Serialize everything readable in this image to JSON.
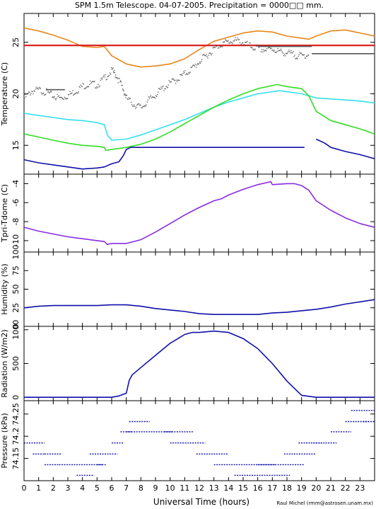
{
  "title": "SPM 1.5m Telescope. 04-07-2005. Precipitation = 0000□□ mm.",
  "xlabel": "Universal Time (hours)",
  "credit": "Raul Michel (rmm@astrosen.unam.mx)",
  "colors": {
    "orange": "#e8861a",
    "red": "#dd2222",
    "gray": "#555555",
    "cyan": "#33e0ee",
    "green": "#33dd22",
    "blue": "#1010aa",
    "purple": "#8a2be2"
  },
  "chart_data": [
    {
      "type": "line",
      "ylabel": "Temperature (C)",
      "xlim": [
        0,
        24
      ],
      "ylim": [
        12.2,
        27.8
      ],
      "yticks": [
        15,
        20,
        25
      ],
      "series": [
        {
          "color_key": "orange",
          "style": "line",
          "x": [
            0,
            1,
            2,
            3,
            3.5,
            4,
            5,
            5.5,
            6,
            7,
            8,
            9,
            10,
            11,
            12,
            13,
            14,
            15,
            16,
            17,
            17.5,
            18,
            19,
            19.5,
            20,
            21,
            22,
            23,
            24
          ],
          "y": [
            26.4,
            26.1,
            25.7,
            25.2,
            24.9,
            24.6,
            24.5,
            24.6,
            23.7,
            22.9,
            22.6,
            22.7,
            22.9,
            23.4,
            24.3,
            25.1,
            25.5,
            25.9,
            26.1,
            26.0,
            25.8,
            25.6,
            25.4,
            25.3,
            25.6,
            26.1,
            26.2,
            25.9,
            25.6
          ]
        },
        {
          "color_key": "red",
          "style": "line",
          "x": [
            0,
            24
          ],
          "y": [
            24.7,
            24.7
          ]
        },
        {
          "color_key": "gray",
          "style": "dots",
          "x": [
            0,
            0.5,
            1,
            1.5,
            2,
            2.5,
            3,
            3.5,
            4,
            4.5,
            5,
            5.5,
            6,
            6.3,
            6.7,
            7,
            7.5,
            8,
            8.5,
            9,
            9.5,
            10,
            10.5,
            11,
            11.5,
            12,
            12.5,
            13,
            13.5,
            14,
            14.5,
            15,
            15.5,
            16,
            16.5,
            17,
            17.5,
            18,
            18.5,
            19,
            19.5
          ],
          "y": [
            19.6,
            20.3,
            20.4,
            20.2,
            19.8,
            19.6,
            19.9,
            20.3,
            20.8,
            21.0,
            20.9,
            21.6,
            22.3,
            21.8,
            20.7,
            19.6,
            19.0,
            18.7,
            19.4,
            20.0,
            20.6,
            21.1,
            21.5,
            22.0,
            22.5,
            23.2,
            23.8,
            24.4,
            24.9,
            25.1,
            25.2,
            25.0,
            24.6,
            24.4,
            24.3,
            24.4,
            24.1,
            24.0,
            23.8,
            23.7,
            23.9
          ]
        },
        {
          "color_key": "gray",
          "style": "line",
          "x": [
            1.5,
            2.8
          ],
          "y": [
            20.4,
            20.4
          ]
        },
        {
          "color_key": "gray",
          "style": "line",
          "x": [
            16,
            19.7
          ],
          "y": [
            24.6,
            24.6
          ]
        },
        {
          "color_key": "gray",
          "style": "line",
          "x": [
            19.7,
            24
          ],
          "y": [
            23.9,
            23.9
          ]
        },
        {
          "color_key": "cyan",
          "style": "line",
          "x": [
            0,
            1,
            2,
            3,
            4,
            5,
            5.5,
            5.7,
            6,
            7,
            8,
            9,
            10,
            11,
            12,
            13,
            14,
            15,
            16,
            17,
            17.5,
            18,
            19,
            19.5,
            20,
            21,
            22,
            23,
            24
          ],
          "y": [
            18.1,
            17.9,
            17.7,
            17.5,
            17.4,
            17.2,
            17.0,
            16.0,
            15.5,
            15.6,
            16.0,
            16.5,
            17.0,
            17.5,
            18.1,
            18.7,
            19.2,
            19.6,
            20.0,
            20.2,
            20.3,
            20.2,
            20.0,
            19.8,
            19.6,
            19.5,
            19.4,
            19.3,
            19.1
          ]
        },
        {
          "color_key": "green",
          "style": "line",
          "x": [
            0,
            1,
            2,
            3,
            4,
            5,
            5.5,
            5.6,
            6,
            7,
            8,
            9,
            10,
            11,
            12,
            13,
            14,
            15,
            16,
            17,
            17.3,
            18,
            18.5,
            19,
            19.5,
            20,
            21,
            22,
            23,
            24
          ],
          "y": [
            16.1,
            15.8,
            15.5,
            15.2,
            15.0,
            14.9,
            14.8,
            14.5,
            14.6,
            14.8,
            15.1,
            15.6,
            16.3,
            17.1,
            17.9,
            18.7,
            19.4,
            20.0,
            20.5,
            20.8,
            20.9,
            20.7,
            20.6,
            20.5,
            19.8,
            18.3,
            17.4,
            17.0,
            16.6,
            16.1
          ]
        },
        {
          "color_key": "blue",
          "style": "line",
          "x": [
            0,
            1,
            2,
            3,
            4,
            5,
            5.5,
            6,
            6.5,
            6.8,
            7,
            7.3
          ],
          "y": [
            13.6,
            13.3,
            13.1,
            12.9,
            12.7,
            12.8,
            12.9,
            13.2,
            13.4,
            14.0,
            14.6,
            14.8
          ]
        },
        {
          "color_key": "blue",
          "style": "line",
          "x": [
            7.3,
            19.2
          ],
          "y": [
            14.8,
            14.8
          ]
        },
        {
          "color_key": "blue",
          "style": "line",
          "x": [
            20,
            20.6,
            21,
            22,
            23,
            24
          ],
          "y": [
            15.6,
            15.2,
            14.8,
            14.4,
            14.1,
            13.7
          ]
        }
      ]
    },
    {
      "type": "line",
      "ylabel": "Tpri-Tdome (C)",
      "xlim": [
        0,
        24
      ],
      "ylim": [
        -11.2,
        -3.0
      ],
      "yticks": [
        -10,
        -8,
        -6,
        -4
      ],
      "series": [
        {
          "color_key": "purple",
          "style": "line",
          "x": [
            0,
            1,
            2,
            3,
            4,
            5,
            5.5,
            5.7,
            6,
            7,
            8,
            9,
            10,
            11,
            12,
            13,
            13.5,
            14,
            15,
            16,
            16.9,
            17,
            18,
            18.5,
            19,
            19.5,
            20,
            21,
            22,
            23,
            24
          ],
          "y": [
            -8.6,
            -9.0,
            -9.3,
            -9.6,
            -9.8,
            -10.0,
            -10.1,
            -10.4,
            -10.3,
            -10.3,
            -9.9,
            -9.1,
            -8.2,
            -7.3,
            -6.5,
            -5.8,
            -5.6,
            -5.2,
            -4.6,
            -4.1,
            -3.8,
            -4.1,
            -4.0,
            -4.0,
            -4.2,
            -4.7,
            -5.8,
            -6.8,
            -7.6,
            -8.2,
            -8.6
          ]
        }
      ]
    },
    {
      "type": "line",
      "ylabel": "Humidity (%)",
      "xlim": [
        0,
        24
      ],
      "ylim": [
        0,
        100
      ],
      "yticks": [
        0,
        25,
        50,
        75,
        100
      ],
      "series": [
        {
          "color_key": "blue",
          "style": "line",
          "x": [
            0,
            1,
            2,
            3,
            4,
            5,
            6,
            7,
            7.5,
            8,
            9,
            10,
            11,
            12,
            13,
            14,
            15,
            16,
            17,
            18,
            19,
            20,
            21,
            22,
            23,
            24
          ],
          "y": [
            25,
            27,
            28,
            28,
            28,
            28,
            29,
            29,
            28,
            27,
            24,
            22,
            20,
            17,
            16,
            16,
            16,
            16,
            18,
            19,
            21,
            23,
            26,
            30,
            33,
            36
          ]
        }
      ]
    },
    {
      "type": "line",
      "ylabel": "Radiation (W/m2)",
      "xlim": [
        0,
        24
      ],
      "ylim": [
        -50,
        1050
      ],
      "yticks": [
        0,
        500,
        1000
      ],
      "series": [
        {
          "color_key": "blue",
          "style": "line",
          "x": [
            0,
            6,
            6.5,
            7,
            7.2,
            7.4,
            8,
            9,
            10,
            11,
            11.5,
            12,
            13,
            14,
            15,
            16,
            17,
            18,
            19,
            20,
            21,
            24
          ],
          "y": [
            0,
            0,
            20,
            60,
            250,
            330,
            440,
            620,
            800,
            930,
            960,
            960,
            980,
            960,
            870,
            720,
            500,
            240,
            30,
            0,
            0,
            0
          ]
        }
      ]
    },
    {
      "type": "scatter",
      "ylabel": "Pressure (kPa)",
      "xlim": [
        0,
        24
      ],
      "ylim": [
        74.1,
        74.28
      ],
      "yticks": [
        74.15,
        74.2,
        74.25
      ],
      "series": [
        {
          "color_key": "blue",
          "style": "dashes",
          "segments": [
            {
              "x": [
                0,
                1.4
              ],
              "y": 74.185
            },
            {
              "x": [
                0.6,
                1.4
              ],
              "y": 74.16
            },
            {
              "x": [
                1.4,
                2.6
              ],
              "y": 74.16
            },
            {
              "x": [
                1.4,
                2.4
              ],
              "y": 74.136
            },
            {
              "x": [
                2.4,
                4.6
              ],
              "y": 74.136
            },
            {
              "x": [
                4.6,
                5.4
              ],
              "y": 74.136
            },
            {
              "x": [
                3.6,
                4.8
              ],
              "y": 74.112
            },
            {
              "x": [
                5.0,
                5.6
              ],
              "y": 74.136
            },
            {
              "x": [
                4.5,
                6.4
              ],
              "y": 74.16
            },
            {
              "x": [
                6.0,
                6.8
              ],
              "y": 74.185
            },
            {
              "x": [
                6.6,
                7.4
              ],
              "y": 74.21
            },
            {
              "x": [
                7.2,
                8.6
              ],
              "y": 74.233
            },
            {
              "x": [
                7.0,
                10.2
              ],
              "y": 74.21
            },
            {
              "x": [
                9.6,
                11.6
              ],
              "y": 74.21
            },
            {
              "x": [
                10.0,
                12.4
              ],
              "y": 74.185
            },
            {
              "x": [
                11.8,
                14.0
              ],
              "y": 74.16
            },
            {
              "x": [
                13.0,
                17.2
              ],
              "y": 74.136
            },
            {
              "x": [
                14.4,
                18.2
              ],
              "y": 74.112
            },
            {
              "x": [
                16.0,
                19.2
              ],
              "y": 74.136
            },
            {
              "x": [
                17.8,
                20.0
              ],
              "y": 74.16
            },
            {
              "x": [
                18.8,
                20.4
              ],
              "y": 74.185
            },
            {
              "x": [
                19.8,
                21.4
              ],
              "y": 74.185
            },
            {
              "x": [
                21.0,
                22.4
              ],
              "y": 74.21
            },
            {
              "x": [
                22.0,
                23.6
              ],
              "y": 74.233
            },
            {
              "x": [
                22.4,
                24.0
              ],
              "y": 74.258
            },
            {
              "x": [
                23.2,
                24.0
              ],
              "y": 74.233
            }
          ]
        }
      ]
    }
  ],
  "xticks": [
    0,
    1,
    2,
    3,
    4,
    5,
    6,
    7,
    8,
    9,
    10,
    11,
    12,
    13,
    14,
    15,
    16,
    17,
    18,
    19,
    20,
    21,
    22,
    23
  ]
}
